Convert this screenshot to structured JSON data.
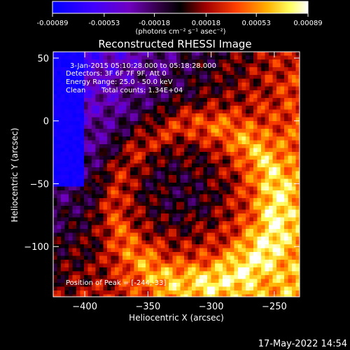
{
  "chart_data": {
    "type": "heatmap",
    "title": "Reconstructed RHESSI Image",
    "xlabel": "Heliocentric X (arcsec)",
    "ylabel": "Heliocentric Y (arcsec)",
    "xlim": [
      -425,
      -230
    ],
    "ylim": [
      -140,
      55
    ],
    "xticks": [
      -400,
      -350,
      -300,
      -250
    ],
    "yticks": [
      50,
      0,
      -50,
      -100
    ],
    "colorbar": {
      "ticks": [
        "-0.00089",
        "-0.00053",
        "-0.00018",
        "0.00018",
        "0.00053",
        "0.00089"
      ],
      "range": [
        -0.00089,
        0.00089
      ],
      "unit_label": "(photons cm⁻² s⁻¹ asec⁻²)",
      "colors": [
        "#0000ff",
        "#8000ff",
        "#000000",
        "#c00000",
        "#ff7f00",
        "#ffff80",
        "#ffffff"
      ]
    },
    "annotations": {
      "time_range": "3-Jan-2015 05:10:28.000 to 05:18:28.000",
      "detectors": "Detectors: 3F 6F 7F 9F, Att 0",
      "energy_range": "Energy Range: 25.0 - 50.0 keV",
      "clean": "Clean",
      "total_counts": "Total counts: 1.34E+04",
      "peak_position": "Position of Peak = [-244,-33]"
    },
    "peak": {
      "x": -244,
      "y": -33
    }
  },
  "footer": {
    "timestamp": "17-May-2022 14:54"
  }
}
